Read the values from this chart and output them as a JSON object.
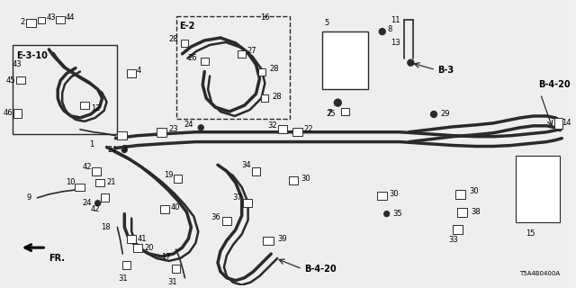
{
  "bg_color": "#f0f0f0",
  "part_number_code": "T5A4B0400A",
  "fig_width": 6.4,
  "fig_height": 3.2,
  "line_color": "#2a2a2a",
  "label_color": "#000000"
}
